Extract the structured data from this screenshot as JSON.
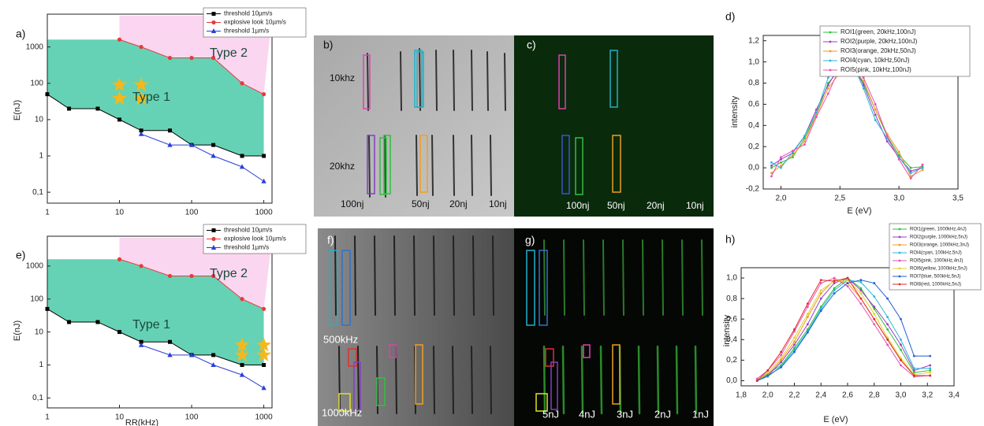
{
  "chart_data": [
    {
      "type": "line",
      "panel_label": "a)",
      "ylabel": "E(nJ)",
      "xlog": true,
      "ylog": true,
      "xlim": [
        1,
        1300
      ],
      "ylim": [
        0.05,
        8000
      ],
      "xticks": [
        1,
        10,
        100,
        1000
      ],
      "yticks": [
        {
          "value": 0.1,
          "label": "0,1"
        },
        1,
        10,
        100,
        1000
      ],
      "area_colors": [
        "#66d2b5",
        "#fad6f0"
      ],
      "annotations": [
        "Type 2",
        "Type 1"
      ],
      "series": [
        {
          "name": "threshold 10µm/s",
          "color": "#000000",
          "marker": "square",
          "x": [
            1,
            2,
            5,
            10,
            20,
            50,
            100,
            200,
            500,
            1000
          ],
          "values": [
            50,
            20,
            20,
            10,
            5,
            5,
            2,
            2,
            1,
            1
          ]
        },
        {
          "name": "explosive look 10µm/s",
          "color": "#e83a3a",
          "marker": "circle",
          "x": [
            10,
            20,
            50,
            100,
            200,
            500,
            1000
          ],
          "values": [
            1600,
            1000,
            500,
            500,
            500,
            100,
            50
          ]
        },
        {
          "name": "threshold 1µm/s",
          "color": "#2a3fd6",
          "marker": "triangle",
          "x": [
            20,
            50,
            100,
            200,
            500,
            1000
          ],
          "values": [
            4,
            2,
            2,
            1,
            0.5,
            0.2
          ]
        }
      ],
      "stars": {
        "color": "#f7b718",
        "x": [
          10,
          20,
          10,
          20
        ],
        "y": [
          90,
          90,
          38,
          38
        ]
      }
    },
    {
      "type": "line",
      "panel_label": "d)",
      "xlabel": "E (eV)",
      "ylabel": "intensity",
      "xlim": [
        1.85,
        3.5
      ],
      "ylim": [
        -0.2,
        1.25
      ],
      "xticks": [
        {
          "value": 2,
          "label": "2,0"
        },
        {
          "value": 2.5,
          "label": "2,5"
        },
        {
          "value": 3,
          "label": "3,0"
        },
        {
          "value": 3.5,
          "label": "3,5"
        }
      ],
      "yticks": [
        {
          "value": -0.2,
          "label": "-0,2"
        },
        {
          "value": 0,
          "label": "0,0"
        },
        {
          "value": 0.2,
          "label": "0,2"
        },
        {
          "value": 0.4,
          "label": "0,4"
        },
        {
          "value": 0.6,
          "label": "0,6"
        },
        {
          "value": 0.8,
          "label": "0,8"
        },
        {
          "value": 1,
          "label": "1,0"
        },
        {
          "value": 1.2,
          "label": "1,2"
        }
      ],
      "x": [
        1.92,
        2.0,
        2.1,
        2.2,
        2.3,
        2.4,
        2.5,
        2.55,
        2.6,
        2.7,
        2.8,
        2.9,
        3.0,
        3.1,
        3.2
      ],
      "series": [
        {
          "name": "ROI1(green, 20kHz,100nJ)",
          "color": "#2fbf3a",
          "values": [
            0.0,
            0.05,
            0.1,
            0.28,
            0.5,
            0.8,
            0.93,
            1.0,
            0.98,
            0.8,
            0.55,
            0.3,
            0.12,
            0.0,
            0.01
          ]
        },
        {
          "name": "ROI2(purple, 20kHz,100nJ)",
          "color": "#9a3cc9",
          "values": [
            0.02,
            0.08,
            0.14,
            0.3,
            0.55,
            0.78,
            0.97,
            0.95,
            1.0,
            0.78,
            0.5,
            0.25,
            0.1,
            -0.03,
            0.0
          ]
        },
        {
          "name": "ROI3(orange, 20kHz,50nJ)",
          "color": "#f39a1e",
          "values": [
            -0.05,
            0.02,
            0.12,
            0.25,
            0.5,
            0.75,
            0.9,
            1.0,
            0.95,
            0.82,
            0.55,
            0.32,
            0.15,
            -0.08,
            -0.02
          ]
        },
        {
          "name": "ROI4(cyan, 10kHz,50nJ)",
          "color": "#27b8d6",
          "values": [
            0.05,
            0.0,
            0.15,
            0.3,
            0.52,
            0.85,
            0.98,
            0.93,
            1.0,
            0.75,
            0.45,
            0.28,
            0.1,
            -0.05,
            0.0
          ]
        },
        {
          "name": "ROI5(pink, 10kHz,100nJ)",
          "color": "#e84fb5",
          "values": [
            -0.08,
            0.1,
            0.16,
            0.22,
            0.48,
            0.7,
            0.95,
            1.0,
            0.97,
            0.85,
            0.6,
            0.3,
            0.08,
            -0.1,
            0.03
          ]
        }
      ]
    },
    {
      "type": "line",
      "panel_label": "e)",
      "xlabel": "RR(kHz)",
      "ylabel": "E(nJ)",
      "xlog": true,
      "ylog": true,
      "xlim": [
        1,
        1300
      ],
      "ylim": [
        0.05,
        8000
      ],
      "xticks": [
        1,
        10,
        100,
        1000
      ],
      "yticks": [
        {
          "value": 0.1,
          "label": "0,1"
        },
        1,
        10,
        100,
        1000
      ],
      "area_colors": [
        "#66d2b5",
        "#fad6f0"
      ],
      "annotations": [
        "Type 2",
        "Type 1"
      ],
      "series": [
        {
          "name": "threshold 10µm/s",
          "color": "#000000",
          "marker": "square",
          "x": [
            1,
            2,
            5,
            10,
            20,
            50,
            100,
            200,
            500,
            1000
          ],
          "values": [
            50,
            20,
            20,
            10,
            5,
            5,
            2,
            2,
            1,
            1
          ]
        },
        {
          "name": "explosive look 10µm/s",
          "color": "#e83a3a",
          "marker": "circle",
          "x": [
            10,
            20,
            50,
            100,
            200,
            500,
            1000
          ],
          "values": [
            1600,
            1000,
            500,
            500,
            500,
            100,
            50
          ]
        },
        {
          "name": "threshold 1µm/s",
          "color": "#2a3fd6",
          "marker": "triangle",
          "x": [
            20,
            50,
            100,
            200,
            500,
            1000
          ],
          "values": [
            4,
            2,
            2,
            1,
            0.5,
            0.2
          ]
        }
      ],
      "stars": {
        "color": "#f7b718",
        "x": [
          500,
          1000,
          500,
          1000
        ],
        "y": [
          4,
          4,
          2,
          2
        ]
      }
    },
    {
      "type": "line",
      "panel_label": "h)",
      "xlabel": "E (eV)",
      "ylabel": "intensity",
      "xlim": [
        1.8,
        3.4
      ],
      "ylim": [
        -0.05,
        1.1
      ],
      "xticks": [
        {
          "value": 1.8,
          "label": "1,8"
        },
        {
          "value": 2.0,
          "label": "2,0"
        },
        {
          "value": 2.2,
          "label": "2,2"
        },
        {
          "value": 2.4,
          "label": "2,4"
        },
        {
          "value": 2.6,
          "label": "2,6"
        },
        {
          "value": 2.8,
          "label": "2,8"
        },
        {
          "value": 3.0,
          "label": "3,0"
        },
        {
          "value": 3.2,
          "label": "3,2"
        },
        {
          "value": 3.4,
          "label": "3,4"
        }
      ],
      "yticks": [
        {
          "value": 0,
          "label": "0,0"
        },
        {
          "value": 0.2,
          "label": "0,2"
        },
        {
          "value": 0.4,
          "label": "0,4"
        },
        {
          "value": 0.6,
          "label": "0,6"
        },
        {
          "value": 0.8,
          "label": "0,8"
        },
        {
          "value": 1,
          "label": "1,0"
        }
      ],
      "x": [
        1.92,
        2.0,
        2.1,
        2.2,
        2.3,
        2.4,
        2.5,
        2.6,
        2.7,
        2.8,
        2.9,
        3.0,
        3.1,
        3.22
      ],
      "series": [
        {
          "name": "ROI1(green, 1000kHz,4nJ)",
          "color": "#2fbf3a",
          "values": [
            0,
            0.07,
            0.15,
            0.32,
            0.5,
            0.72,
            0.9,
            1.0,
            0.9,
            0.7,
            0.5,
            0.3,
            0.08,
            0.1
          ]
        },
        {
          "name": "ROI2(purple, 1000kHz,5nJ)",
          "color": "#9a3cc9",
          "values": [
            0,
            0.05,
            0.18,
            0.35,
            0.55,
            0.8,
            0.95,
            1.0,
            0.88,
            0.72,
            0.55,
            0.35,
            0.1,
            0.15
          ]
        },
        {
          "name": "ROI3(orange, 1000kHz,3nJ)",
          "color": "#f39a1e",
          "values": [
            0,
            0.06,
            0.2,
            0.38,
            0.62,
            0.85,
            0.98,
            0.95,
            0.8,
            0.6,
            0.4,
            0.2,
            0.05,
            0.05
          ]
        },
        {
          "name": "ROI4(cyan, 100kHz,5nJ)",
          "color": "#27b8d6",
          "values": [
            0,
            0.04,
            0.14,
            0.3,
            0.48,
            0.7,
            0.88,
            0.98,
            0.96,
            0.82,
            0.62,
            0.4,
            0.12,
            0.12
          ]
        },
        {
          "name": "ROI5(pink, 1000kHz,4nJ)",
          "color": "#e84fb5",
          "values": [
            0.02,
            0.1,
            0.25,
            0.48,
            0.72,
            0.95,
            1.0,
            0.92,
            0.75,
            0.55,
            0.35,
            0.15,
            0.04,
            0.05
          ]
        },
        {
          "name": "ROI6(yellow, 1000kHz,5nJ)",
          "color": "#e0d22a",
          "values": [
            0,
            0.08,
            0.22,
            0.42,
            0.65,
            0.88,
            0.97,
            0.98,
            0.85,
            0.65,
            0.42,
            0.22,
            0.06,
            0.08
          ]
        },
        {
          "name": "ROI7(blue, 500kHz,5nJ)",
          "color": "#1f5fd6",
          "values": [
            0,
            0.05,
            0.13,
            0.28,
            0.47,
            0.68,
            0.85,
            0.95,
            0.98,
            0.95,
            0.8,
            0.6,
            0.24,
            0.24
          ]
        },
        {
          "name": "ROI8(red, 1000kHz,5nJ)",
          "color": "#e02a2a",
          "values": [
            0,
            0.1,
            0.28,
            0.5,
            0.75,
            0.98,
            0.97,
            1.0,
            0.8,
            0.6,
            0.4,
            0.2,
            0.05,
            0.05
          ]
        }
      ]
    }
  ],
  "images": [
    {
      "label": "b)",
      "texts": [
        "10khz",
        "20khz",
        "100nj",
        "50nj",
        "20nj",
        "10nj"
      ]
    },
    {
      "label": "c)",
      "texts": [
        "100nj",
        "50nj",
        "20nj",
        "10nj"
      ]
    },
    {
      "label": "f)",
      "texts": [
        "500kHz",
        "1000kHz"
      ]
    },
    {
      "label": "g)",
      "texts": [
        "5nJ",
        "4nJ",
        "3nJ",
        "2nJ",
        "1nJ"
      ]
    }
  ]
}
